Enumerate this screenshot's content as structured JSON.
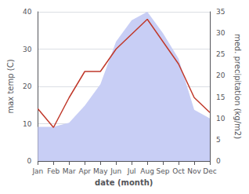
{
  "chart_data": {
    "type": "line",
    "categories": [
      "Jan",
      "Feb",
      "Mar",
      "Apr",
      "May",
      "Jun",
      "Jul",
      "Aug",
      "Sep",
      "Oct",
      "Nov",
      "Dec"
    ],
    "series": [
      {
        "type": "area",
        "color": "#c8cef5",
        "axis": "y2",
        "values": [
          8,
          8,
          9,
          13,
          18,
          28,
          33,
          35,
          30,
          24,
          12,
          10
        ]
      },
      {
        "type": "line",
        "color": "#c0392b",
        "values": [
          14,
          9,
          17,
          24,
          24,
          30,
          34,
          38,
          32,
          26,
          17,
          13
        ]
      }
    ],
    "xlabel": "date (month)",
    "ylabel": "max temp (C)",
    "y2label": "med. precipitation (kg/m2)",
    "ylim": [
      0,
      40
    ],
    "yticks": [
      0,
      10,
      20,
      30,
      40
    ],
    "y2lim": [
      0,
      35
    ],
    "y2ticks": [
      0,
      5,
      10,
      15,
      20,
      25,
      30,
      35
    ],
    "grid": true
  }
}
